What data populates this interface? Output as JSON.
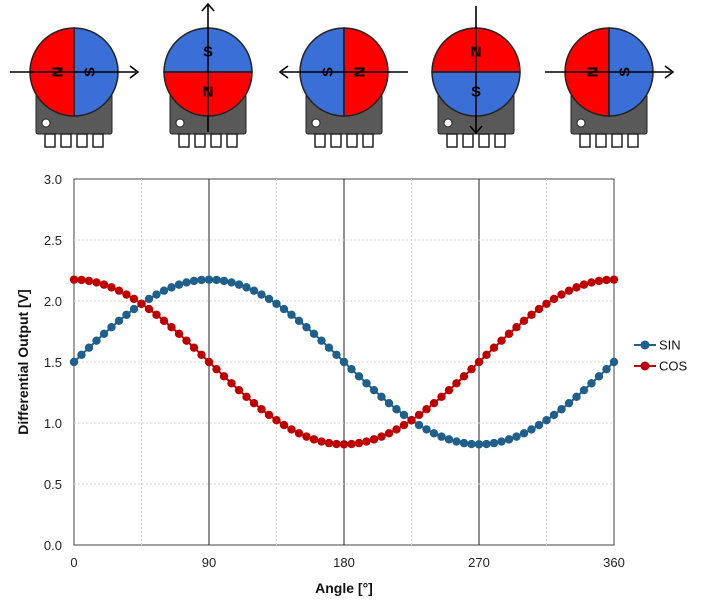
{
  "magnets": [
    {
      "angle": "0",
      "left_label": "N",
      "right_label": "S",
      "colors": [
        "#ff0000",
        "#3a6fd8"
      ],
      "orientation": "vertical",
      "arrow": "right"
    },
    {
      "angle": "90",
      "top_label": "S",
      "bottom_label": "N",
      "colors": [
        "#3a6fd8",
        "#ff0000"
      ],
      "orientation": "horizontal",
      "arrow": "up"
    },
    {
      "angle": "180",
      "left_label": "S",
      "right_label": "N",
      "colors": [
        "#3a6fd8",
        "#ff0000"
      ],
      "orientation": "vertical",
      "arrow": "left"
    },
    {
      "angle": "270",
      "top_label": "N",
      "bottom_label": "S",
      "colors": [
        "#ff0000",
        "#3a6fd8"
      ],
      "orientation": "horizontal",
      "arrow": "down"
    },
    {
      "angle": "360",
      "left_label": "N",
      "right_label": "S",
      "colors": [
        "#ff0000",
        "#3a6fd8"
      ],
      "orientation": "vertical",
      "arrow": "right"
    }
  ],
  "chart_data": {
    "type": "line",
    "title": "",
    "xlabel": "Angle [°]",
    "ylabel": "Differential Output [V]",
    "xlim": [
      0,
      360
    ],
    "ylim": [
      0,
      3.0
    ],
    "x_ticks": [
      0,
      90,
      180,
      270,
      360
    ],
    "x_tick_labels": [
      "0",
      "90",
      "180",
      "270",
      "360"
    ],
    "y_ticks": [
      0,
      0.5,
      1.0,
      1.5,
      2.0,
      2.5,
      3.0
    ],
    "y_tick_labels": [
      "0.0",
      "0.5",
      "1.0",
      "1.5",
      "2.0",
      "2.5",
      "3.0"
    ],
    "grid": true,
    "legend_position": "right",
    "x_step": 5,
    "series": [
      {
        "name": "SIN",
        "color": "#1f5f8b",
        "function": "sin",
        "offset": 1.5,
        "amplitude": 0.675
      },
      {
        "name": "COS",
        "color": "#c00000",
        "function": "cos",
        "offset": 1.5,
        "amplitude": 0.675
      }
    ]
  }
}
